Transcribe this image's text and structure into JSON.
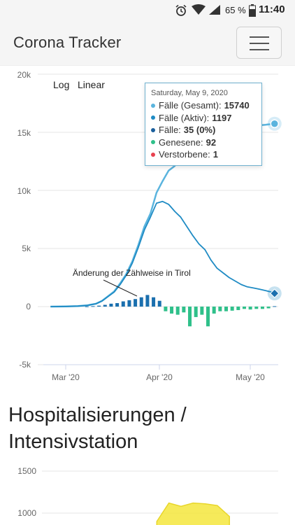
{
  "status_bar": {
    "battery": "65 %",
    "time": "11:40",
    "icons": [
      "alarm-icon",
      "wifi-icon",
      "signal-icon",
      "battery-icon"
    ]
  },
  "header": {
    "brand": "Corona Tracker",
    "menu_icon": "hamburger-icon"
  },
  "scale_buttons": {
    "log": "Log",
    "linear": "Linear"
  },
  "annotation": "Änderung der Zählweise in Tirol",
  "tooltip": {
    "date": "Saturday, May 9, 2020",
    "rows": [
      {
        "label": "Fälle (Gesamt):",
        "value": "15740",
        "color": "#5ab4de"
      },
      {
        "label": "Fälle (Aktiv):",
        "value": "1197",
        "color": "#1f8bc4"
      },
      {
        "label": "Fälle:",
        "value": "35 (0%)",
        "color": "#1a5f9c"
      },
      {
        "label": "Genesene:",
        "value": "92",
        "color": "#2fc08a"
      },
      {
        "label": "Verstorbene:",
        "value": "1",
        "color": "#e8414f"
      }
    ]
  },
  "section_title": "Hospitalisierungen / Intensivstation",
  "chart_data": [
    {
      "type": "line",
      "y_tick_labels": [
        "20k",
        "15k",
        "10k",
        "5k",
        "0",
        "-5k"
      ],
      "x_tick_labels": [
        "Mar '20",
        "Apr '20",
        "May '20"
      ],
      "ylim": [
        -5000,
        20000
      ],
      "x": [
        "2020-02-25",
        "2020-03-01",
        "2020-03-05",
        "2020-03-08",
        "2020-03-11",
        "2020-03-13",
        "2020-03-15",
        "2020-03-17",
        "2020-03-19",
        "2020-03-21",
        "2020-03-23",
        "2020-03-25",
        "2020-03-27",
        "2020-03-29",
        "2020-03-31",
        "2020-04-02",
        "2020-04-04",
        "2020-04-06",
        "2020-04-08",
        "2020-04-10",
        "2020-04-12",
        "2020-04-14",
        "2020-04-16",
        "2020-04-18",
        "2020-04-20",
        "2020-04-22",
        "2020-04-24",
        "2020-04-26",
        "2020-04-28",
        "2020-04-30",
        "2020-05-02",
        "2020-05-04",
        "2020-05-06",
        "2020-05-08",
        "2020-05-09"
      ],
      "series": [
        {
          "name": "Fälle (Gesamt)",
          "color": "#5ab4de",
          "values": [
            2,
            10,
            40,
            100,
            250,
            500,
            900,
            1300,
            2000,
            2800,
            3900,
            5300,
            6900,
            8000,
            9800,
            10800,
            11700,
            12100,
            12700,
            13200,
            13600,
            14000,
            14300,
            14500,
            14700,
            14900,
            15050,
            15150,
            15300,
            15400,
            15500,
            15600,
            15650,
            15710,
            15740
          ]
        },
        {
          "name": "Fälle (Aktiv)",
          "color": "#1f8bc4",
          "values": [
            2,
            10,
            40,
            100,
            240,
            480,
            860,
            1250,
            1900,
            2700,
            3750,
            5100,
            6600,
            7700,
            8900,
            9050,
            8800,
            8200,
            7700,
            6900,
            6100,
            5400,
            4900,
            4000,
            3300,
            2900,
            2500,
            2200,
            1900,
            1700,
            1600,
            1500,
            1380,
            1250,
            1197
          ]
        }
      ],
      "bars": {
        "name": "Fälle",
        "color": "#1a6fae",
        "negative_color": "#2fc08a",
        "dates": [
          "2020-03-08",
          "2020-03-10",
          "2020-03-12",
          "2020-03-14",
          "2020-03-16",
          "2020-03-18",
          "2020-03-20",
          "2020-03-22",
          "2020-03-24",
          "2020-03-26",
          "2020-03-28",
          "2020-03-30",
          "2020-04-01",
          "2020-04-03",
          "2020-04-05",
          "2020-04-07",
          "2020-04-09",
          "2020-04-11",
          "2020-04-13",
          "2020-04-15",
          "2020-04-17",
          "2020-04-19",
          "2020-04-21",
          "2020-04-23",
          "2020-04-25",
          "2020-04-27",
          "2020-04-29",
          "2020-05-01",
          "2020-05-03",
          "2020-05-05",
          "2020-05-07",
          "2020-05-09"
        ],
        "values": [
          20,
          40,
          80,
          150,
          250,
          300,
          450,
          550,
          650,
          800,
          1000,
          800,
          500,
          -400,
          -600,
          -700,
          -500,
          -1700,
          -900,
          -700,
          -1700,
          -600,
          -400,
          -400,
          -350,
          -300,
          -200,
          -250,
          -200,
          -200,
          -150,
          35
        ]
      },
      "tooltip_marker_date": "2020-05-09"
    },
    {
      "type": "area",
      "y_tick_labels": [
        "1500",
        "1000"
      ],
      "color": "#f5e63d",
      "x": [
        "2020-03-20",
        "2020-03-24",
        "2020-03-28",
        "2020-04-01",
        "2020-04-05",
        "2020-04-09",
        "2020-04-13"
      ],
      "values": [
        900,
        1120,
        1080,
        1120,
        1110,
        1090,
        960
      ]
    }
  ]
}
